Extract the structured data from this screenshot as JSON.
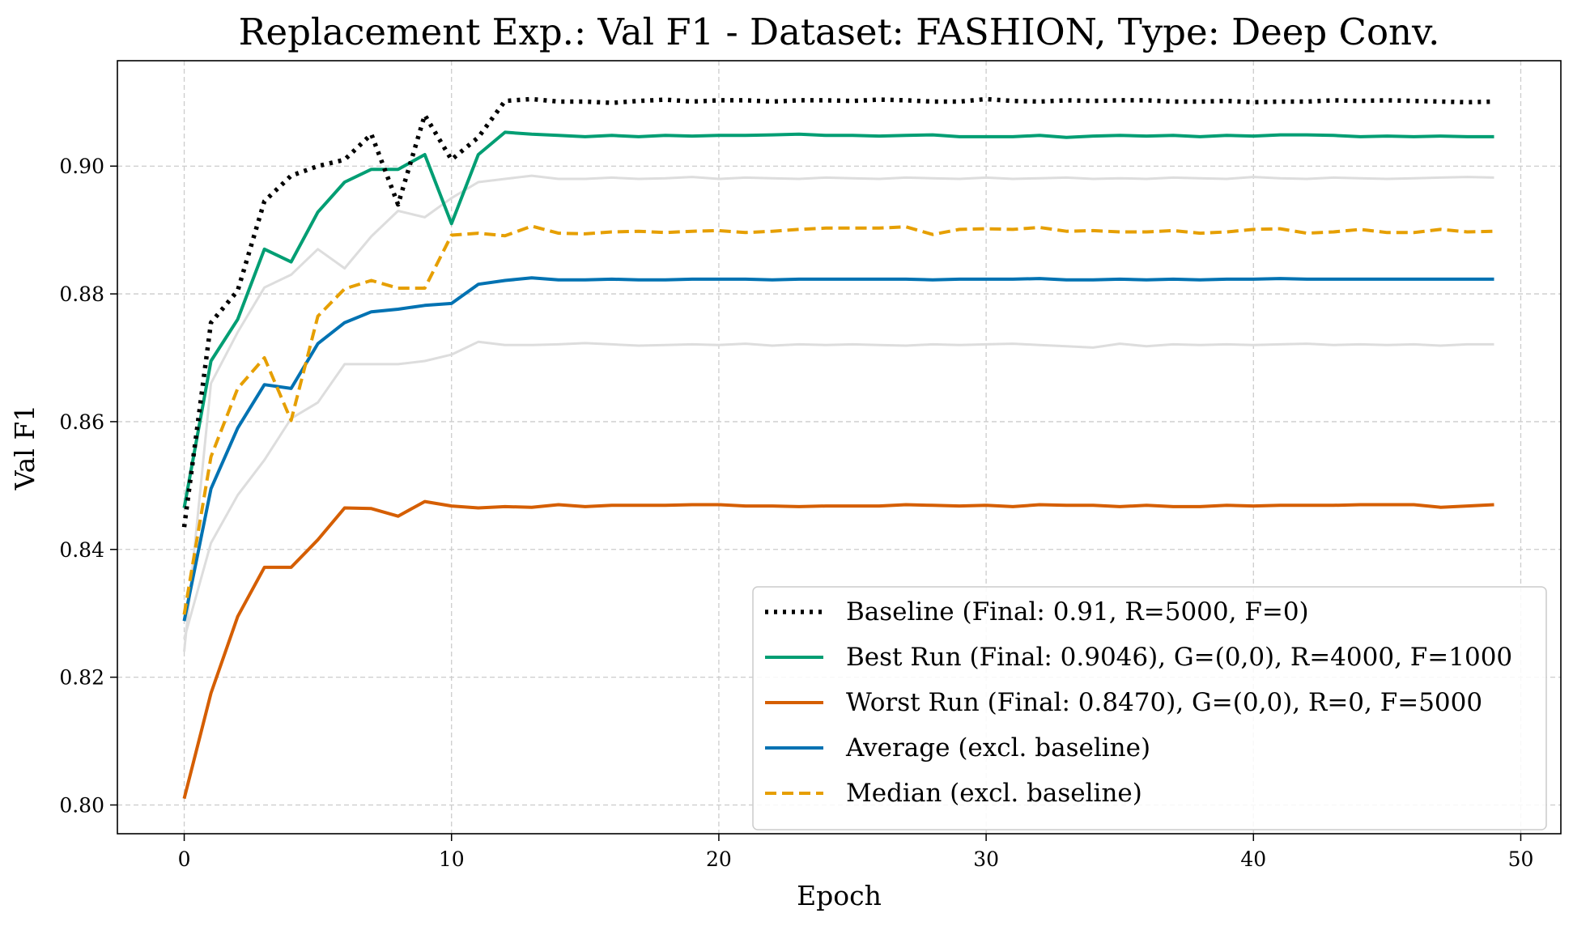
{
  "chart_data": {
    "type": "line",
    "title": "Replacement Exp.: Val F1 - Dataset: FASHION, Type: Deep Conv.",
    "xlabel": "Epoch",
    "ylabel": "Val F1",
    "xlim": [
      -2.5,
      51.5
    ],
    "ylim": [
      0.7955,
      0.9165
    ],
    "xticks": [
      0,
      10,
      20,
      30,
      40,
      50
    ],
    "yticks": [
      0.8,
      0.82,
      0.84,
      0.86,
      0.88,
      0.9
    ],
    "xtick_labels": [
      "0",
      "10",
      "20",
      "30",
      "40",
      "50"
    ],
    "ytick_labels": [
      "0.80",
      "0.82",
      "0.84",
      "0.86",
      "0.88",
      "0.90"
    ],
    "grid": true,
    "legend_position": "lower-right",
    "background_series": [
      {
        "color": "#dddddd",
        "values": [
          0.824,
          0.866,
          0.874,
          0.881,
          0.883,
          0.887,
          0.884,
          0.889,
          0.893,
          0.892,
          0.895,
          0.8975,
          0.898,
          0.8985,
          0.898,
          0.898,
          0.8982,
          0.898,
          0.8981,
          0.8983,
          0.898,
          0.8982,
          0.8981,
          0.898,
          0.8982,
          0.8981,
          0.898,
          0.8982,
          0.8981,
          0.898,
          0.8982,
          0.898,
          0.8981,
          0.8982,
          0.898,
          0.8981,
          0.898,
          0.8982,
          0.8981,
          0.898,
          0.8983,
          0.8981,
          0.898,
          0.8982,
          0.8981,
          0.898,
          0.8981,
          0.8982,
          0.8983,
          0.8982
        ]
      },
      {
        "color": "#dddddd",
        "values": [
          0.826,
          0.841,
          0.8485,
          0.854,
          0.8605,
          0.863,
          0.869,
          0.869,
          0.869,
          0.8695,
          0.8705,
          0.8725,
          0.872,
          0.872,
          0.8721,
          0.8723,
          0.8721,
          0.8719,
          0.872,
          0.8721,
          0.872,
          0.8722,
          0.8719,
          0.8721,
          0.872,
          0.8721,
          0.872,
          0.8719,
          0.8721,
          0.872,
          0.8721,
          0.8722,
          0.872,
          0.8718,
          0.8716,
          0.8722,
          0.8718,
          0.8721,
          0.872,
          0.8721,
          0.872,
          0.8721,
          0.8722,
          0.872,
          0.8721,
          0.872,
          0.8721,
          0.8719,
          0.8721,
          0.8721
        ]
      }
    ],
    "series": [
      {
        "name": "Baseline (Final: 0.91, R=5000, F=0)",
        "color": "#000000",
        "style": "dotted",
        "values": [
          0.8435,
          0.8755,
          0.8805,
          0.8945,
          0.8985,
          0.9,
          0.901,
          0.905,
          0.894,
          0.908,
          0.901,
          0.9045,
          0.9102,
          0.9105,
          0.9101,
          0.9101,
          0.9099,
          0.9102,
          0.9104,
          0.9101,
          0.9103,
          0.9103,
          0.9101,
          0.9103,
          0.9103,
          0.9102,
          0.9104,
          0.9103,
          0.9101,
          0.9101,
          0.9105,
          0.9102,
          0.9101,
          0.9103,
          0.9102,
          0.9103,
          0.9103,
          0.9101,
          0.9101,
          0.9102,
          0.91,
          0.9101,
          0.9101,
          0.9103,
          0.9102,
          0.9103,
          0.9102,
          0.9101,
          0.91,
          0.9101
        ]
      },
      {
        "name": "Best Run (Final: 0.9046), G=(0,0), R=4000, F=1000",
        "color": "#009e73",
        "style": "solid",
        "values": [
          0.8465,
          0.8695,
          0.876,
          0.887,
          0.885,
          0.8928,
          0.8975,
          0.8995,
          0.8995,
          0.9018,
          0.891,
          0.9018,
          0.9053,
          0.905,
          0.9048,
          0.9046,
          0.9048,
          0.9046,
          0.9048,
          0.9047,
          0.9048,
          0.9048,
          0.9049,
          0.905,
          0.9048,
          0.9048,
          0.9047,
          0.9048,
          0.9049,
          0.9046,
          0.9046,
          0.9046,
          0.9048,
          0.9045,
          0.9047,
          0.9048,
          0.9047,
          0.9048,
          0.9046,
          0.9048,
          0.9047,
          0.9049,
          0.9049,
          0.9048,
          0.9046,
          0.9047,
          0.9046,
          0.9047,
          0.9046,
          0.9046
        ]
      },
      {
        "name": "Worst Run (Final: 0.8470), G=(0,0), R=0, F=5000",
        "color": "#d55e00",
        "style": "solid",
        "values": [
          0.801,
          0.8175,
          0.8295,
          0.8372,
          0.8372,
          0.8415,
          0.8465,
          0.8464,
          0.8452,
          0.8475,
          0.8468,
          0.8465,
          0.8467,
          0.8466,
          0.847,
          0.8467,
          0.8469,
          0.8469,
          0.8469,
          0.847,
          0.847,
          0.8468,
          0.8468,
          0.8467,
          0.8468,
          0.8468,
          0.8468,
          0.847,
          0.8469,
          0.8468,
          0.8469,
          0.8467,
          0.847,
          0.8469,
          0.8469,
          0.8467,
          0.8469,
          0.8467,
          0.8467,
          0.8469,
          0.8468,
          0.8469,
          0.8469,
          0.8469,
          0.847,
          0.847,
          0.847,
          0.8466,
          0.8468,
          0.847
        ]
      },
      {
        "name": "Average (excl. baseline)",
        "color": "#0072b2",
        "style": "solid",
        "values": [
          0.8288,
          0.8495,
          0.859,
          0.8658,
          0.8652,
          0.8722,
          0.8755,
          0.8772,
          0.8776,
          0.8782,
          0.8785,
          0.8815,
          0.8821,
          0.8825,
          0.8822,
          0.8822,
          0.8823,
          0.8822,
          0.8822,
          0.8823,
          0.8823,
          0.8823,
          0.8822,
          0.8823,
          0.8823,
          0.8823,
          0.8823,
          0.8823,
          0.8822,
          0.8823,
          0.8823,
          0.8823,
          0.8824,
          0.8822,
          0.8822,
          0.8823,
          0.8822,
          0.8823,
          0.8822,
          0.8823,
          0.8823,
          0.8824,
          0.8823,
          0.8823,
          0.8823,
          0.8823,
          0.8823,
          0.8823,
          0.8823,
          0.8823
        ]
      },
      {
        "name": "Median (excl. baseline)",
        "color": "#e69f00",
        "style": "dashed",
        "values": [
          0.8298,
          0.8545,
          0.8652,
          0.87,
          0.8602,
          0.8765,
          0.8808,
          0.8821,
          0.8809,
          0.8809,
          0.8892,
          0.8895,
          0.8891,
          0.8906,
          0.8895,
          0.8894,
          0.8897,
          0.8898,
          0.8896,
          0.8898,
          0.8899,
          0.8896,
          0.8898,
          0.8901,
          0.8903,
          0.8903,
          0.8903,
          0.8905,
          0.8893,
          0.8901,
          0.8902,
          0.8901,
          0.8904,
          0.8898,
          0.8899,
          0.8897,
          0.8897,
          0.8899,
          0.8895,
          0.8897,
          0.8901,
          0.8902,
          0.8895,
          0.8897,
          0.8901,
          0.8896,
          0.8896,
          0.8901,
          0.8897,
          0.8898
        ]
      }
    ]
  }
}
